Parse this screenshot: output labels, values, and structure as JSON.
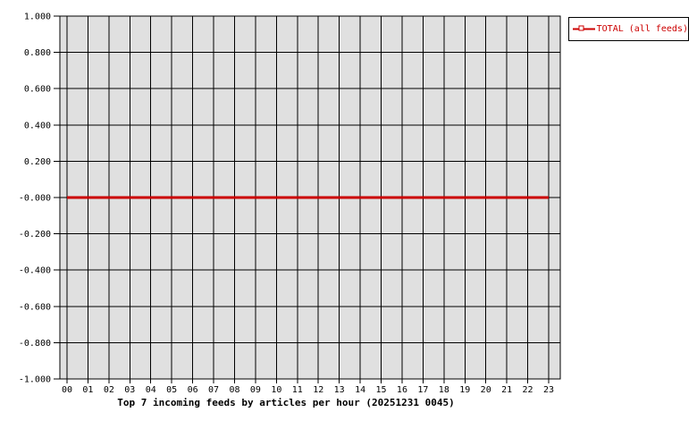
{
  "chart_data": {
    "type": "line",
    "title": "Top 7 incoming feeds by articles per hour (20251231 0045)",
    "categories": [
      "00",
      "01",
      "02",
      "03",
      "04",
      "05",
      "06",
      "07",
      "08",
      "09",
      "10",
      "11",
      "12",
      "13",
      "14",
      "15",
      "16",
      "17",
      "18",
      "19",
      "20",
      "21",
      "22",
      "23"
    ],
    "series": [
      {
        "name": "TOTAL (all feeds)",
        "color": "#cc0000",
        "marker": "square",
        "values": [
          0,
          0,
          0,
          0,
          0,
          0,
          0,
          0,
          0,
          0,
          0,
          0,
          0,
          0,
          0,
          0,
          0,
          0,
          0,
          0,
          0,
          0,
          0,
          0
        ]
      }
    ],
    "ylim": [
      -1.0,
      1.0
    ],
    "ytick_values": [
      1.0,
      0.8,
      0.6,
      0.4,
      0.2,
      0.0,
      -0.2,
      -0.4,
      -0.6,
      -0.8,
      -1.0
    ],
    "ytick_labels": [
      "1.000",
      "0.800",
      "0.600",
      "0.400",
      "0.200",
      "-0.000",
      "-0.200",
      "-0.400",
      "-0.600",
      "-0.800",
      "-1.000"
    ],
    "xlabel": "",
    "ylabel": "",
    "grid": true,
    "legend_position": "top-right-outside",
    "plot_background": "#e0e0e0",
    "grid_color": "#000000",
    "page_background": "#ffffff",
    "text_color": "#000000"
  }
}
